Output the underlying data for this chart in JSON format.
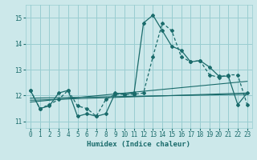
{
  "xlabel": "Humidex (Indice chaleur)",
  "bg_color": "#cce8ea",
  "grid_color": "#99cdd1",
  "line_color": "#1a6b6b",
  "xlim": [
    -0.5,
    23.5
  ],
  "ylim": [
    10.75,
    15.5
  ],
  "yticks": [
    11,
    12,
    13,
    14,
    15
  ],
  "xticks": [
    0,
    1,
    2,
    3,
    4,
    5,
    6,
    7,
    8,
    9,
    10,
    11,
    12,
    13,
    14,
    15,
    16,
    17,
    18,
    19,
    20,
    21,
    22,
    23
  ],
  "main_line_x": [
    0,
    1,
    2,
    3,
    4,
    5,
    6,
    7,
    8,
    9,
    10,
    11,
    12,
    13,
    14,
    15,
    16,
    17,
    18,
    19,
    20,
    21,
    22,
    23
  ],
  "main_line_y": [
    12.2,
    11.5,
    11.6,
    12.1,
    12.2,
    11.2,
    11.3,
    11.2,
    11.3,
    12.1,
    12.05,
    12.1,
    14.8,
    15.1,
    14.5,
    13.9,
    13.75,
    13.3,
    13.35,
    13.1,
    12.75,
    12.75,
    11.65,
    12.1
  ],
  "line2_x": [
    0,
    1,
    2,
    3,
    4,
    5,
    6,
    7,
    8,
    9,
    10,
    11,
    12,
    13,
    14,
    15,
    16,
    17,
    18,
    19,
    20,
    21,
    22,
    23
  ],
  "line2_y": [
    12.2,
    11.5,
    11.65,
    11.85,
    12.2,
    11.6,
    11.5,
    11.2,
    11.85,
    12.05,
    12.05,
    12.05,
    12.1,
    13.5,
    14.8,
    14.5,
    13.5,
    13.3,
    13.35,
    12.8,
    12.7,
    12.8,
    12.8,
    11.65
  ],
  "trend1_x": [
    0,
    23
  ],
  "trend1_y": [
    11.9,
    12.05
  ],
  "trend2_x": [
    0,
    23
  ],
  "trend2_y": [
    11.82,
    12.1
  ],
  "trend3_x": [
    0,
    23
  ],
  "trend3_y": [
    11.75,
    12.55
  ]
}
